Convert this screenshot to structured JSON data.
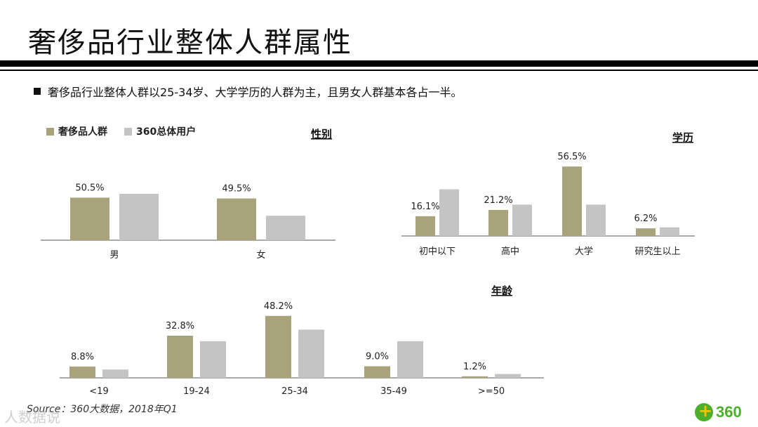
{
  "title": "奢侈品行业整体人群属性",
  "bullet": "奢侈品行业整体人群以25-34岁、大学学历的人群为主，且男女人群基本各占一半。",
  "source": "Source：360大数据，2018年Q1",
  "watermark": "人数据说",
  "logo_text": "360",
  "colors": {
    "luxury": "#a8a37a",
    "total": "#c4c4c4"
  },
  "legend": [
    {
      "name": "奢侈品人群",
      "color": "#a8a37a"
    },
    {
      "name": "360总体用户",
      "color": "#c4c4c4"
    }
  ],
  "chart_data": [
    {
      "type": "bar",
      "title": "性别",
      "categories": [
        "男",
        "女"
      ],
      "series": [
        {
          "name": "奢侈品人群",
          "values": [
            50.5,
            49.5
          ],
          "labels": [
            "50.5%",
            "49.5%"
          ]
        },
        {
          "name": "360总体用户",
          "values": [
            55,
            29
          ]
        }
      ]
    },
    {
      "type": "bar",
      "title": "学历",
      "categories": [
        "初中以下",
        "高中",
        "大学",
        "研究生以上"
      ],
      "series": [
        {
          "name": "奢侈品人群",
          "values": [
            16.1,
            21.2,
            56.5,
            6.2
          ],
          "labels": [
            "16.1%",
            "21.2%",
            "56.5%",
            "6.2%"
          ]
        },
        {
          "name": "360总体用户",
          "values": [
            38,
            25.5,
            25.5,
            7
          ]
        }
      ]
    },
    {
      "type": "bar",
      "title": "年龄",
      "categories": [
        "<19",
        "19-24",
        "25-34",
        "35-49",
        ">=50"
      ],
      "series": [
        {
          "name": "奢侈品人群",
          "values": [
            8.8,
            32.8,
            48.2,
            9.0,
            1.2
          ],
          "labels": [
            "8.8%",
            "32.8%",
            "48.2%",
            "9.0%",
            "1.2%"
          ]
        },
        {
          "name": "360总体用户",
          "values": [
            6.5,
            28.5,
            37.5,
            28.5,
            3
          ]
        }
      ]
    }
  ]
}
